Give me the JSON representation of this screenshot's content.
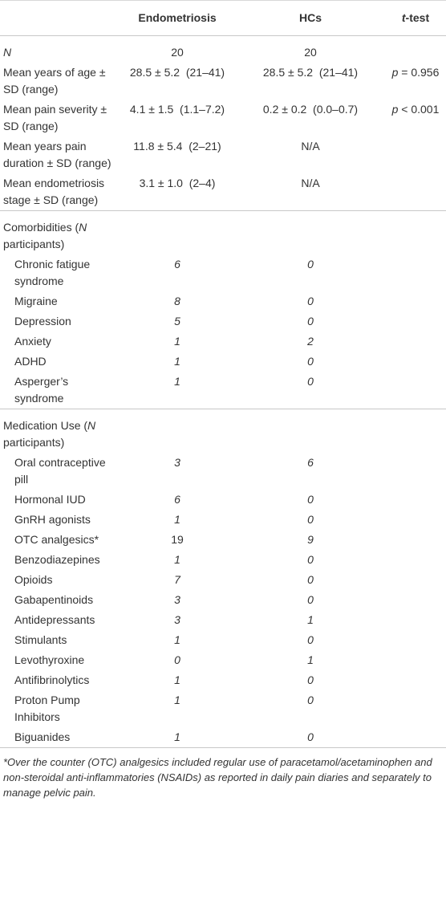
{
  "table": {
    "header": [
      "Endometriosis",
      "HCs",
      [
        "t",
        "-test"
      ]
    ],
    "sections": [
      {
        "rows": [
          [
            [
              "N"
            ],
            "20",
            "20"
          ],
          [
            "Mean years of age ± SD (range)",
            "28.5 ± 5.2  (21–41)",
            "28.5 ± 5.2  (21–41)",
            [
              "p",
              " = 0.956"
            ]
          ],
          [
            "Mean pain severity ± SD (range)",
            "4.1 ± 1.5  (1.1–7.2)",
            "0.2 ± 0.2  (0.0–0.7)",
            [
              "p",
              " < 0.001"
            ]
          ],
          [
            "Mean years pain duration ± SD (range)",
            "11.8 ± 5.4  (2–21)",
            "N/A"
          ],
          [
            "Mean endometriosis stage ± SD (range)",
            "3.1 ± 1.0  (2–4)",
            "N/A"
          ]
        ]
      },
      {
        "title": [
          "Comorbidities (",
          "N",
          " participants)"
        ],
        "rows": [
          [
            "Chronic fatigue syndrome",
            "6",
            "0"
          ],
          [
            "Migraine",
            "8",
            "0"
          ],
          [
            "Depression",
            "5",
            "0"
          ],
          [
            "Anxiety",
            "1",
            "2"
          ],
          [
            "ADHD",
            "1",
            "0"
          ],
          [
            "Asperger’s syndrome",
            "1",
            "0"
          ]
        ]
      },
      {
        "title": [
          "Medication Use (",
          "N",
          " participants)"
        ],
        "rows": [
          [
            "Oral contraceptive pill",
            "3",
            "6"
          ],
          [
            "Hormonal IUD",
            "6",
            "0"
          ],
          [
            "GnRH agonists",
            "1",
            "0"
          ],
          [
            "OTC analgesics*",
            "19",
            "9"
          ],
          [
            "Benzodiazepines",
            "1",
            "0"
          ],
          [
            "Opioids",
            "7",
            "0"
          ],
          [
            "Gabapentinoids",
            "3",
            "0"
          ],
          [
            "Antidepressants",
            "3",
            "1"
          ],
          [
            "Stimulants",
            "1",
            "0"
          ],
          [
            "Levothyroxine",
            "0",
            "1"
          ],
          [
            "Antifibrinolytics",
            "1",
            "0"
          ],
          [
            "Proton Pump Inhibitors",
            "1",
            "0"
          ],
          [
            "Biguanides",
            "1",
            "0"
          ]
        ]
      }
    ],
    "footnote": "*Over the counter (OTC) analgesics included regular use of paracetamol/acetaminophen and non-steroidal anti-inflammatories (NSAIDs) as reported in daily pain diaries and separately to manage pelvic pain."
  }
}
